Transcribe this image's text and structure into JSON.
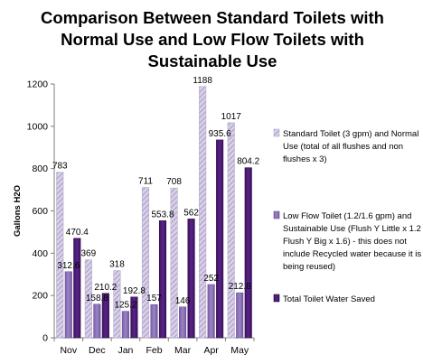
{
  "chart_data": {
    "type": "bar",
    "title_lines": [
      "Comparison Between Standard Toilets with",
      "Normal Use and Low Flow Toilets with",
      "Sustainable Use"
    ],
    "xlabel": "",
    "ylabel": "Gallons H2O",
    "ylim": [
      0,
      1200
    ],
    "yticks": [
      0,
      200,
      400,
      600,
      800,
      1000,
      1200
    ],
    "categories": [
      "Nov",
      "Dec",
      "Jan",
      "Feb",
      "Mar",
      "Apr",
      "May"
    ],
    "series": [
      {
        "name": "Standard Toilet (3 gpm) and Normal Use (total of all flushes and non flushes x 3)",
        "legend_lines": [
          "Standard Toilet (3 gpm) and Normal",
          "Use (total of all flushes and non",
          "flushes x 3)"
        ],
        "values": [
          783,
          369,
          318,
          711,
          708,
          1188,
          1017
        ],
        "labels": [
          "783",
          "369",
          "318",
          "711",
          "708",
          "1188",
          "1017"
        ],
        "color": "#c9bedb",
        "pattern": "diagonal-hatch"
      },
      {
        "name": "Low Flow Toilet (1.2/1.6 gpm) and Sustainable Use (Flush Y Little x 1.2 + Flush Y Big x 1.6) - this does not include Recycled water because it is being reused)",
        "legend_lines": [
          "Low Flow Toilet (1.2/1.6 gpm) and",
          "Sustainable Use (Flush Y Little x 1.2 +",
          "Flush Y Big x 1.6) - this does not",
          "include Recycled water because it is",
          "being reused)"
        ],
        "values": [
          312.6,
          158.8,
          125.2,
          157,
          146,
          252,
          212.8
        ],
        "labels": [
          "312.6",
          "158.8",
          "125.2",
          "157",
          "146",
          "252",
          "212.8"
        ],
        "color": "#8b6fb5",
        "pattern": "solid"
      },
      {
        "name": "Total Toilet Water Saved",
        "legend_lines": [
          "Total Toilet Water Saved"
        ],
        "values": [
          470.4,
          210.2,
          192.8,
          553.8,
          562,
          935.6,
          804.2
        ],
        "labels": [
          "470.4",
          "210.2",
          "192.8",
          "553.8",
          "562",
          "935.6",
          "804.2"
        ],
        "color": "#4b1a73",
        "pattern": "solid"
      }
    ],
    "grid": false,
    "legend_position": "right"
  }
}
